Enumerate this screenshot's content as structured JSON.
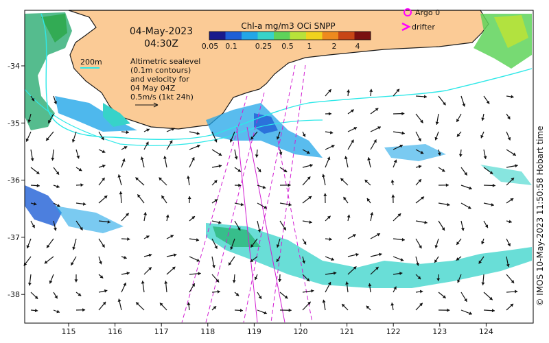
{
  "map": {
    "date": "04-May-2023",
    "time": "04:30Z",
    "contour_label": "200m",
    "altimetry_note": [
      "Altimetric sealevel",
      "(0.1m contours)",
      "and velocity for",
      "04 May 04Z",
      "0.5m/s (1kt 24h)"
    ],
    "credit": "© IMOS 10-May-2023 11:50:58 Hobart time",
    "lon_ticks": [
      "115",
      "116",
      "117",
      "118",
      "119",
      "120",
      "121",
      "122",
      "123",
      "124"
    ],
    "lat_ticks": [
      "-34",
      "-35",
      "-36",
      "-37",
      "-38"
    ]
  },
  "colorbar": {
    "title": "Chl-a mg/m3 OCi SNPP",
    "tick_labels": [
      "0.05",
      "0.1",
      "0.25",
      "0.5",
      "1",
      "2",
      "4"
    ],
    "colors": [
      "#1a1a8c",
      "#1f5fd6",
      "#22a6e8",
      "#37d3c9",
      "#5fd35a",
      "#b8e23a",
      "#f0d21e",
      "#ee8a1e",
      "#c84615",
      "#7a1010"
    ]
  },
  "legend": {
    "argo_label": "Argo 0",
    "drifter_label": "drifter",
    "color": "#ff00ff"
  },
  "colors": {
    "land": "#fbcb96",
    "coast": "#1a1a1a",
    "contour": "#2ee8e8",
    "track": "#d21ed2"
  }
}
